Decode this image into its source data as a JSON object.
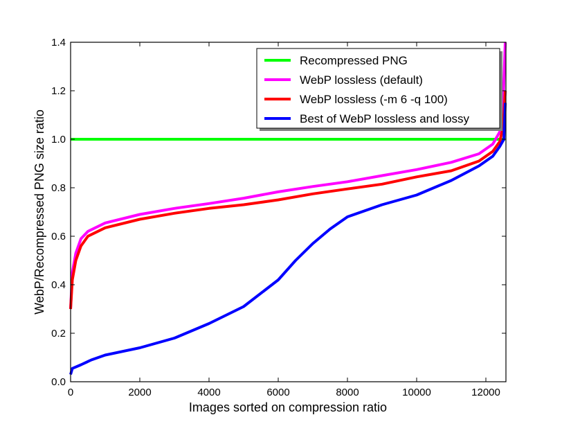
{
  "chart_data": {
    "type": "line",
    "title": "",
    "xlabel": "Images sorted on compression ratio",
    "ylabel": "WebP/Recompressed PNG size ratio",
    "xlim": [
      0,
      12580
    ],
    "ylim": [
      0.0,
      1.4
    ],
    "xticks": [
      0,
      2000,
      4000,
      6000,
      8000,
      10000,
      12000
    ],
    "xtick_labels": [
      "0",
      "2000",
      "4000",
      "6000",
      "8000",
      "10000",
      "12000"
    ],
    "yticks": [
      0.0,
      0.2,
      0.4,
      0.6,
      0.8,
      1.0,
      1.2,
      1.4
    ],
    "ytick_labels": [
      "0.0",
      "0.2",
      "0.4",
      "0.6",
      "0.8",
      "1.0",
      "1.2",
      "1.4"
    ],
    "grid": false,
    "legend_position": "top-right",
    "series": [
      {
        "name": "Recompressed PNG",
        "color": "#00ff00",
        "x": [
          0,
          12560
        ],
        "y": [
          1.0,
          1.0
        ]
      },
      {
        "name": "WebP lossless (default)",
        "color": "#ff00ff",
        "x": [
          0,
          50,
          150,
          300,
          500,
          1000,
          2000,
          3000,
          4000,
          5000,
          6000,
          7000,
          8000,
          9000,
          10000,
          11000,
          11800,
          12200,
          12400,
          12500,
          12560
        ],
        "y": [
          0.3,
          0.45,
          0.53,
          0.59,
          0.62,
          0.655,
          0.69,
          0.715,
          0.735,
          0.757,
          0.783,
          0.805,
          0.825,
          0.85,
          0.875,
          0.905,
          0.94,
          0.98,
          1.03,
          1.15,
          1.4
        ]
      },
      {
        "name": "WebP lossless (-m 6 -q 100)",
        "color": "#ff0000",
        "x": [
          0,
          50,
          150,
          300,
          500,
          1000,
          2000,
          3000,
          4000,
          5000,
          6000,
          7000,
          8000,
          9000,
          10000,
          11000,
          11800,
          12200,
          12400,
          12500,
          12560
        ],
        "y": [
          0.3,
          0.42,
          0.5,
          0.56,
          0.6,
          0.635,
          0.67,
          0.695,
          0.715,
          0.73,
          0.75,
          0.775,
          0.795,
          0.815,
          0.845,
          0.87,
          0.91,
          0.95,
          0.99,
          1.05,
          1.2
        ]
      },
      {
        "name": "Best of WebP lossless and lossy",
        "color": "#0000ff",
        "x": [
          0,
          50,
          300,
          600,
          1000,
          2000,
          3000,
          4000,
          5000,
          6000,
          6500,
          7000,
          7500,
          8000,
          9000,
          10000,
          11000,
          11800,
          12200,
          12400,
          12520,
          12560
        ],
        "y": [
          0.03,
          0.055,
          0.07,
          0.09,
          0.11,
          0.14,
          0.18,
          0.24,
          0.31,
          0.42,
          0.5,
          0.57,
          0.63,
          0.68,
          0.73,
          0.77,
          0.83,
          0.89,
          0.93,
          0.97,
          1.0,
          1.15
        ]
      }
    ]
  }
}
